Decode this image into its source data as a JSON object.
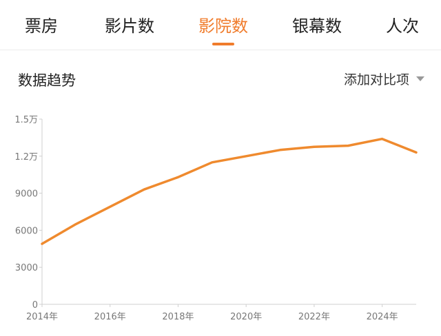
{
  "tabs": [
    {
      "label": "票房",
      "active": false
    },
    {
      "label": "影片数",
      "active": false
    },
    {
      "label": "影院数",
      "active": true
    },
    {
      "label": "银幕数",
      "active": false
    },
    {
      "label": "人次",
      "active": false
    }
  ],
  "section": {
    "title": "数据趋势",
    "compare_label": "添加对比项"
  },
  "colors": {
    "accent": "#f07c2c",
    "line": "#ef8a2e",
    "axis": "#cfcfcf",
    "text": "#222222"
  },
  "chart_data": {
    "type": "line",
    "title": "",
    "xlabel": "",
    "ylabel": "",
    "x": [
      2014,
      2015,
      2016,
      2017,
      2018,
      2019,
      2020,
      2021,
      2022,
      2023,
      2024,
      2025
    ],
    "x_ticks": [
      "2014年",
      "2016年",
      "2018年",
      "2020年",
      "2022年",
      "2024年"
    ],
    "x_tick_values": [
      2014,
      2016,
      2018,
      2020,
      2022,
      2024
    ],
    "y_ticks": [
      "0",
      "3000",
      "6000",
      "9000",
      "1.2万",
      "1.5万"
    ],
    "y_tick_values": [
      0,
      3000,
      6000,
      9000,
      12000,
      15000
    ],
    "ylim": [
      0,
      15000
    ],
    "xlim": [
      2014,
      2025
    ],
    "grid": false,
    "series": [
      {
        "values": [
          4900,
          6500,
          7900,
          9300,
          10300,
          11500,
          12000,
          12500,
          12750,
          12850,
          13400,
          12300
        ]
      }
    ]
  }
}
